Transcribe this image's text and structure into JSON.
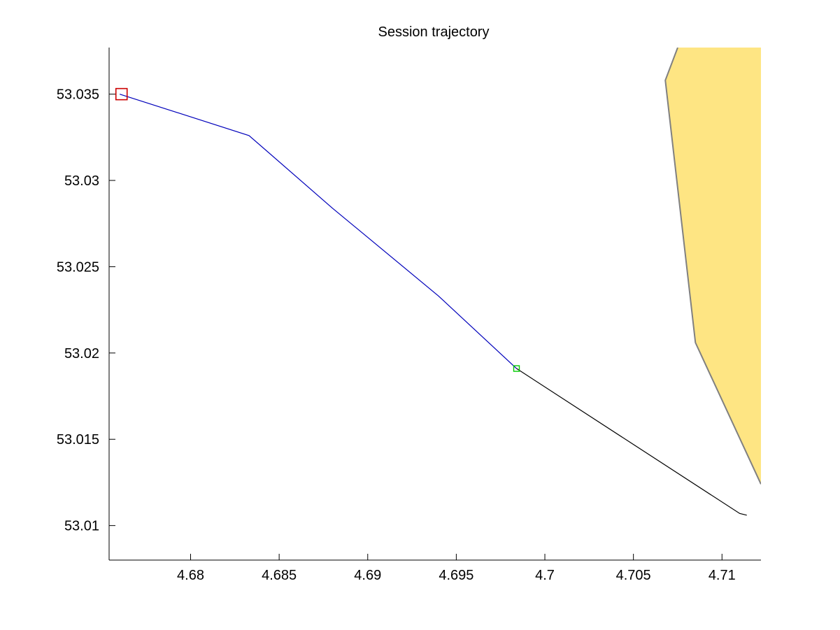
{
  "chart_data": {
    "type": "line",
    "title": "Session trajectory",
    "xlabel": "",
    "ylabel": "",
    "xlim": [
      4.6754,
      4.7122
    ],
    "ylim": [
      53.008,
      53.0377
    ],
    "grid": false,
    "x_ticks": [
      "4.68",
      "4.685",
      "4.69",
      "4.695",
      "4.7",
      "4.705",
      "4.71"
    ],
    "x_tick_values": [
      4.68,
      4.685,
      4.69,
      4.695,
      4.7,
      4.705,
      4.71
    ],
    "y_ticks": [
      "53.035",
      "53.03",
      "53.025",
      "53.02",
      "53.015",
      "53.01"
    ],
    "y_tick_values": [
      53.035,
      53.03,
      53.025,
      53.02,
      53.015,
      53.01
    ],
    "land_color": "#fee583",
    "land_edge_color": "#808080",
    "land_polygon": [
      [
        4.7075,
        53.0377
      ],
      [
        4.7068,
        53.0358
      ],
      [
        4.7085,
        53.0206
      ],
      [
        4.7122,
        53.0124
      ],
      [
        4.7122,
        53.0377
      ]
    ],
    "series": [
      {
        "color": "#0000bb",
        "points": [
          [
            4.676,
            53.035
          ],
          [
            4.6833,
            53.0326
          ],
          [
            4.688,
            53.0284
          ],
          [
            4.694,
            53.0233
          ],
          [
            4.6984,
            53.0191
          ]
        ]
      },
      {
        "color": "#000000",
        "points": [
          [
            4.6984,
            53.0191
          ],
          [
            4.711,
            53.0107
          ],
          [
            4.7114,
            53.0106
          ]
        ]
      }
    ],
    "markers": [
      {
        "type": "start",
        "shape": "square",
        "color": "#cc0000",
        "x": 4.6761,
        "y": 53.035,
        "size": "large"
      },
      {
        "type": "current",
        "shape": "square",
        "color": "#00cc00",
        "x": 4.6984,
        "y": 53.0191,
        "size": "small"
      }
    ]
  }
}
